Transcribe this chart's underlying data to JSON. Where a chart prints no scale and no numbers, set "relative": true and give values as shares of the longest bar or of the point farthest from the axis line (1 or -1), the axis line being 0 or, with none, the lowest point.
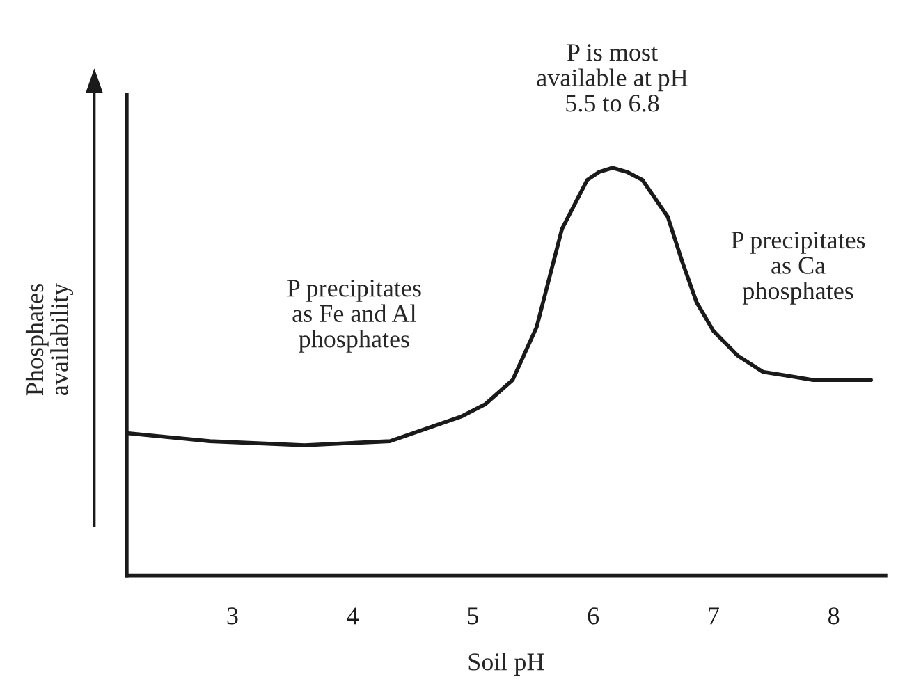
{
  "chart_data": {
    "type": "line",
    "relative": true,
    "xlabel": "Soil pH",
    "ylabel": "Phosphates\navailability",
    "xlim": [
      2.12,
      8.43
    ],
    "xticks": [
      3,
      4,
      5,
      6,
      7,
      8
    ],
    "grid": false,
    "legend": false,
    "series": [
      {
        "color": "#1a1a1a",
        "x": [
          2.12,
          2.81,
          3.6,
          4.31,
          4.9,
          5.1,
          5.33,
          5.53,
          5.74,
          5.95,
          6.05,
          6.16,
          6.28,
          6.41,
          6.62,
          6.74,
          6.86,
          7.0,
          7.2,
          7.41,
          7.62,
          7.83,
          8.31
        ],
        "values": [
          0.35,
          0.33,
          0.32,
          0.33,
          0.39,
          0.42,
          0.48,
          0.61,
          0.85,
          0.97,
          0.99,
          1,
          0.99,
          0.97,
          0.88,
          0.77,
          0.67,
          0.6,
          0.54,
          0.5,
          0.49,
          0.48,
          0.48
        ]
      }
    ],
    "annotations": [
      "P precipitates\nas Fe and Al\nphosphates",
      "P is most\navailable at pH\n5.5 to 6.8",
      "P precipitates\nas Ca\nphosphates"
    ]
  }
}
